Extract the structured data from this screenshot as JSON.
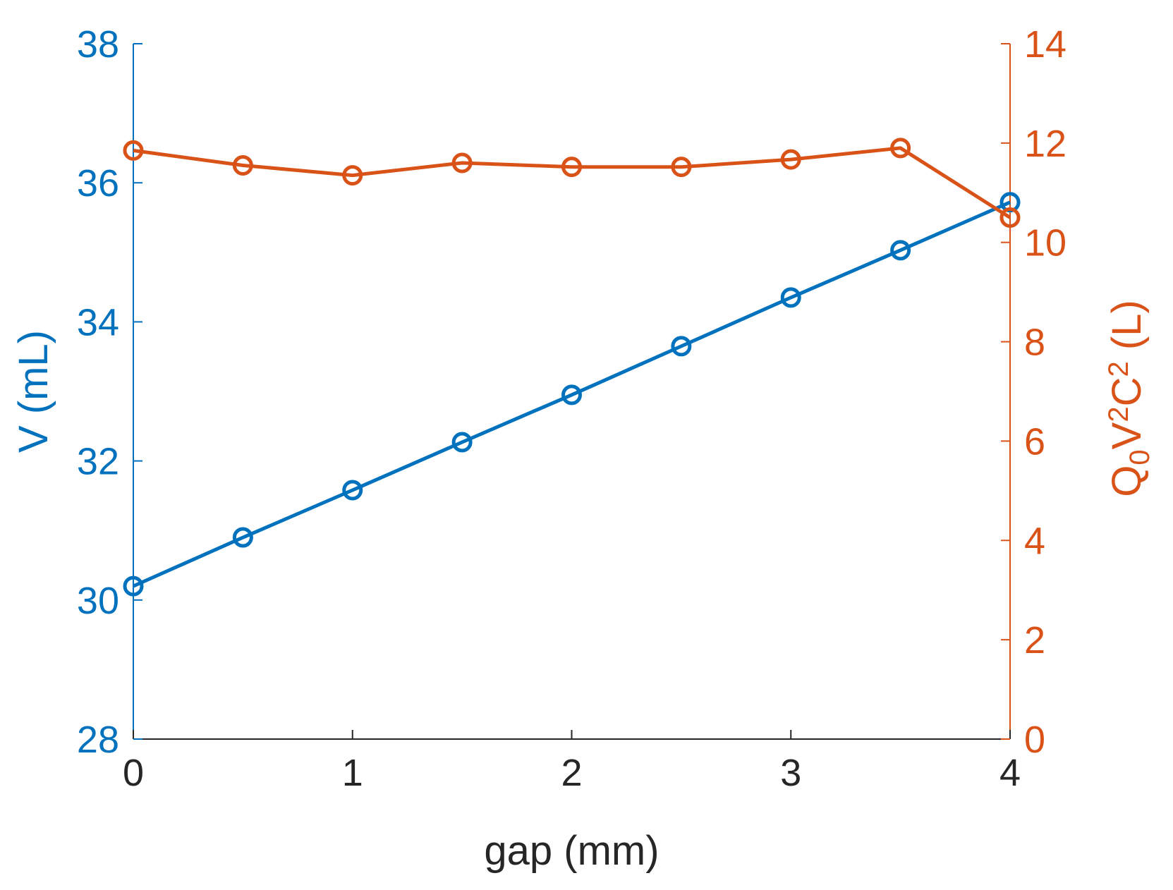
{
  "chart_data": {
    "type": "line",
    "xlabel": "gap (mm)",
    "ylabel_left": "V (mL)",
    "ylabel_right": {
      "parts": [
        {
          "text": "Q",
          "pos": "base"
        },
        {
          "text": "0",
          "pos": "sub"
        },
        {
          "text": "V",
          "pos": "base"
        },
        {
          "text": "2",
          "pos": "sup"
        },
        {
          "text": "C",
          "pos": "base"
        },
        {
          "text": "2",
          "pos": "sup"
        },
        {
          "text": " (L)",
          "pos": "base"
        }
      ]
    },
    "xlim": [
      0,
      4
    ],
    "ylim_left": [
      28,
      38
    ],
    "ylim_right": [
      0,
      14
    ],
    "x_ticks": [
      "0",
      "1",
      "2",
      "3",
      "4"
    ],
    "y_left_ticks": [
      "28",
      "30",
      "32",
      "34",
      "36",
      "38"
    ],
    "y_right_ticks": [
      "0",
      "2",
      "4",
      "6",
      "8",
      "10",
      "12",
      "14"
    ],
    "grid": false,
    "x": [
      0,
      0.5,
      1,
      1.5,
      2,
      2.5,
      3,
      3.5,
      4
    ],
    "series": [
      {
        "axis": "left",
        "color": "#0072BD",
        "marker": "circle",
        "values": [
          30.2,
          30.9,
          31.58,
          32.27,
          32.95,
          33.65,
          34.35,
          35.03,
          35.72
        ]
      },
      {
        "axis": "right",
        "color": "#D95319",
        "marker": "circle",
        "values": [
          11.85,
          11.55,
          11.35,
          11.6,
          11.52,
          11.52,
          11.67,
          11.9,
          10.5
        ]
      }
    ]
  },
  "colors": {
    "left_axis": "#0072BD",
    "right_axis": "#D95319",
    "x_axis": "#262626"
  }
}
